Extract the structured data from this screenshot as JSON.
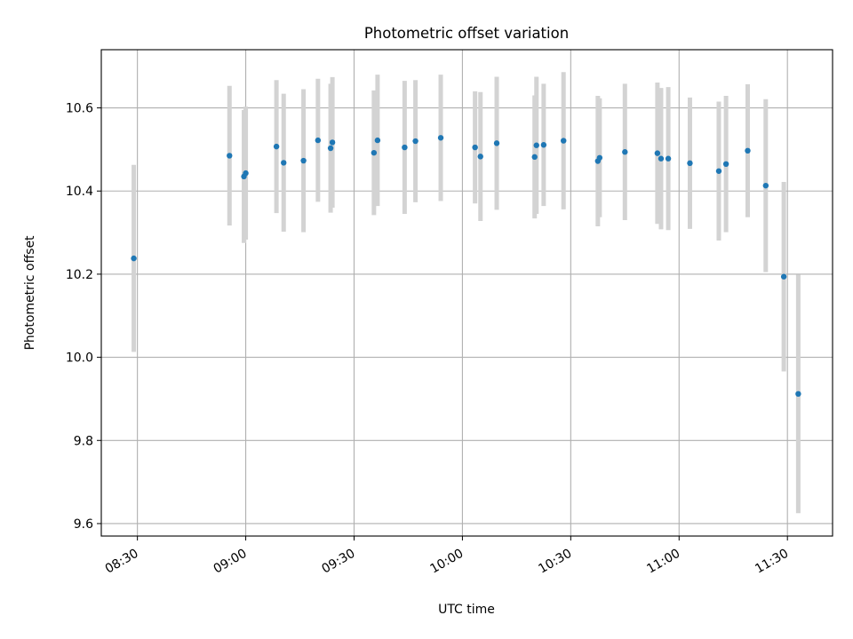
{
  "chart_data": {
    "type": "scatter",
    "title": "Photometric offset variation",
    "xlabel": "UTC time",
    "ylabel": "Photometric offset",
    "x_ticks": [
      "08:30",
      "09:00",
      "09:30",
      "10:00",
      "10:30",
      "11:00",
      "11:30"
    ],
    "y_ticks": [
      "9.6",
      "9.8",
      "10.0",
      "10.2",
      "10.4",
      "10.6"
    ],
    "xlim": [
      "08:20:00",
      "11:42:30"
    ],
    "ylim": [
      9.57,
      10.74
    ],
    "grid": true,
    "legend": "none",
    "colors": {
      "point": "#1f77b4",
      "errorbar": "#d3d3d3",
      "grid": "#b0b0b0"
    },
    "points": [
      {
        "t": "08:29:00",
        "y": 10.238,
        "err": 0.225
      },
      {
        "t": "08:55:30",
        "y": 10.485,
        "err": 0.168
      },
      {
        "t": "08:59:30",
        "y": 10.435,
        "err": 0.16
      },
      {
        "t": "09:00:00",
        "y": 10.443,
        "err": 0.16
      },
      {
        "t": "09:08:30",
        "y": 10.507,
        "err": 0.16
      },
      {
        "t": "09:10:30",
        "y": 10.468,
        "err": 0.166
      },
      {
        "t": "09:16:00",
        "y": 10.473,
        "err": 0.172
      },
      {
        "t": "09:20:00",
        "y": 10.522,
        "err": 0.148
      },
      {
        "t": "09:23:30",
        "y": 10.503,
        "err": 0.155
      },
      {
        "t": "09:24:00",
        "y": 10.517,
        "err": 0.157
      },
      {
        "t": "09:35:30",
        "y": 10.492,
        "err": 0.15
      },
      {
        "t": "09:36:30",
        "y": 10.522,
        "err": 0.158
      },
      {
        "t": "09:44:00",
        "y": 10.505,
        "err": 0.16
      },
      {
        "t": "09:47:00",
        "y": 10.52,
        "err": 0.147
      },
      {
        "t": "09:54:00",
        "y": 10.528,
        "err": 0.152
      },
      {
        "t": "10:03:30",
        "y": 10.505,
        "err": 0.135
      },
      {
        "t": "10:05:00",
        "y": 10.483,
        "err": 0.155
      },
      {
        "t": "10:09:30",
        "y": 10.515,
        "err": 0.16
      },
      {
        "t": "10:20:00",
        "y": 10.482,
        "err": 0.148
      },
      {
        "t": "10:20:30",
        "y": 10.51,
        "err": 0.165
      },
      {
        "t": "10:22:30",
        "y": 10.511,
        "err": 0.147
      },
      {
        "t": "10:28:00",
        "y": 10.521,
        "err": 0.165
      },
      {
        "t": "10:37:30",
        "y": 10.472,
        "err": 0.157
      },
      {
        "t": "10:38:00",
        "y": 10.48,
        "err": 0.143
      },
      {
        "t": "10:45:00",
        "y": 10.494,
        "err": 0.164
      },
      {
        "t": "10:54:00",
        "y": 10.491,
        "err": 0.17
      },
      {
        "t": "10:55:00",
        "y": 10.478,
        "err": 0.17
      },
      {
        "t": "10:57:00",
        "y": 10.478,
        "err": 0.172
      },
      {
        "t": "11:03:00",
        "y": 10.467,
        "err": 0.158
      },
      {
        "t": "11:11:00",
        "y": 10.448,
        "err": 0.167
      },
      {
        "t": "11:13:00",
        "y": 10.465,
        "err": 0.164
      },
      {
        "t": "11:19:00",
        "y": 10.497,
        "err": 0.16
      },
      {
        "t": "11:24:00",
        "y": 10.413,
        "err": 0.208
      },
      {
        "t": "11:29:00",
        "y": 10.194,
        "err": 0.228
      },
      {
        "t": "11:33:00",
        "y": 9.912,
        "err": 0.287
      }
    ]
  }
}
